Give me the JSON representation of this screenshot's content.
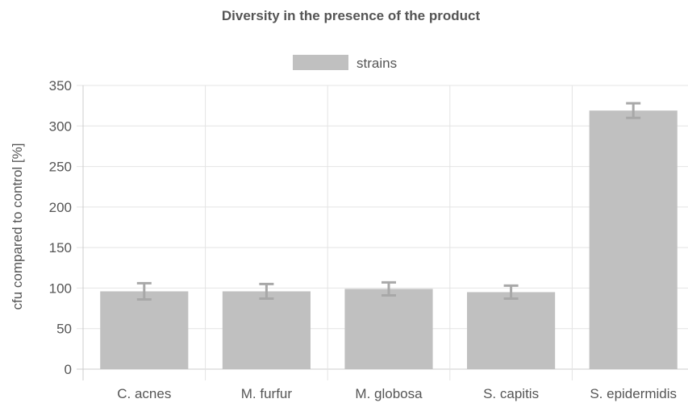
{
  "chart_data": {
    "type": "bar",
    "title": "Diversity in the presence of the product",
    "xlabel": "",
    "ylabel": "cfu compared to control [%]",
    "ylim": [
      0,
      350
    ],
    "yticks": [
      0,
      50,
      100,
      150,
      200,
      250,
      300,
      350
    ],
    "grid": true,
    "legend_position": "top",
    "categories": [
      "C. acnes",
      "M. furfur",
      "M. globosa",
      "S. capitis",
      "S. epidermidis"
    ],
    "series": [
      {
        "name": "strains",
        "color": "#c0c0c0",
        "values": [
          96,
          96,
          99,
          95,
          319
        ],
        "error": [
          10,
          9,
          8,
          8,
          9
        ]
      }
    ]
  }
}
